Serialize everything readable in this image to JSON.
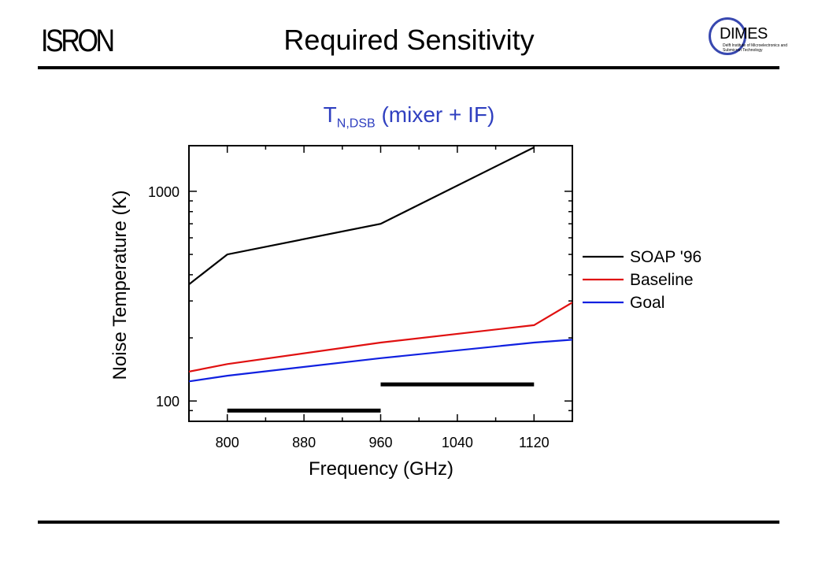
{
  "header": {
    "logo_left_text": "ISRON",
    "title": "Required Sensitivity",
    "logo_right_text": "DIMES",
    "logo_right_subtitle": "Delft Institute of Microelectronics and Submicron Technology"
  },
  "chart_subtitle": {
    "main": "T",
    "sub": "N,DSB",
    "rest": " (mixer + IF)"
  },
  "colors": {
    "subtitle": "#3040c0",
    "soap": "#000000",
    "baseline": "#e01010",
    "goal": "#1020e0"
  },
  "chart_data": {
    "type": "line",
    "xlabel": "Frequency (GHz)",
    "ylabel": "Noise Temperature (K)",
    "xlim": [
      760,
      1160
    ],
    "ylim": [
      80,
      1650
    ],
    "y_scale": "log",
    "x_ticks": [
      800,
      880,
      960,
      1040,
      1120
    ],
    "y_ticks": [
      100,
      1000
    ],
    "legend_position": "right",
    "series": [
      {
        "name": "SOAP '96",
        "color": "#000000",
        "points": [
          [
            760,
            360
          ],
          [
            800,
            500
          ],
          [
            960,
            700
          ],
          [
            1120,
            1620
          ]
        ]
      },
      {
        "name": "Baseline",
        "color": "#e01010",
        "points": [
          [
            760,
            138
          ],
          [
            800,
            150
          ],
          [
            960,
            190
          ],
          [
            1120,
            230
          ],
          [
            1160,
            295
          ]
        ]
      },
      {
        "name": "Goal",
        "color": "#1020e0",
        "points": [
          [
            760,
            124
          ],
          [
            800,
            132
          ],
          [
            960,
            160
          ],
          [
            1120,
            190
          ],
          [
            1160,
            196
          ]
        ]
      }
    ],
    "bands": [
      {
        "x": [
          800,
          960
        ],
        "y": 90
      },
      {
        "x": [
          960,
          1120
        ],
        "y": 120
      }
    ]
  }
}
